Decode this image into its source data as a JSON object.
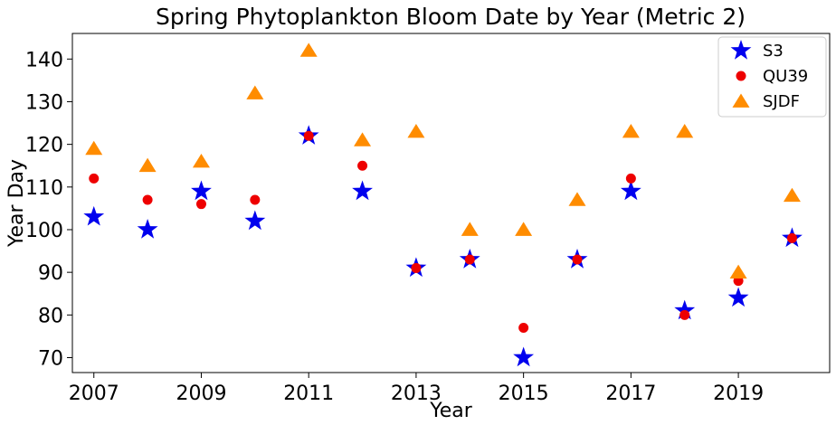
{
  "chart_data": {
    "type": "scatter",
    "title": "Spring Phytoplankton Bloom Date by Year (Metric 2)",
    "xlabel": "Year",
    "ylabel": "Year Day",
    "xlim": [
      2006.6,
      2020.7
    ],
    "ylim": [
      66.5,
      146
    ],
    "xticks": [
      2007,
      2009,
      2011,
      2013,
      2015,
      2017,
      2019
    ],
    "yticks": [
      70,
      80,
      90,
      100,
      110,
      120,
      130,
      140
    ],
    "grid": false,
    "legend_position": "top-right",
    "x": [
      2007,
      2008,
      2009,
      2010,
      2011,
      2012,
      2013,
      2014,
      2015,
      2016,
      2017,
      2018,
      2019,
      2020
    ],
    "series": [
      {
        "name": "S3",
        "marker": "star",
        "color": "#0000ee",
        "values": [
          103,
          100,
          109,
          102,
          122,
          109,
          91,
          93,
          70,
          93,
          109,
          81,
          84,
          98
        ]
      },
      {
        "name": "QU39",
        "marker": "circle",
        "color": "#ee0000",
        "values": [
          112,
          107,
          106,
          107,
          122,
          115,
          91,
          93,
          77,
          93,
          112,
          80,
          88,
          98
        ]
      },
      {
        "name": "SJDF",
        "marker": "triangle",
        "color": "#ff8c00",
        "values": [
          119,
          115,
          116,
          132,
          142,
          121,
          123,
          100,
          100,
          107,
          123,
          123,
          90,
          108
        ]
      }
    ]
  }
}
